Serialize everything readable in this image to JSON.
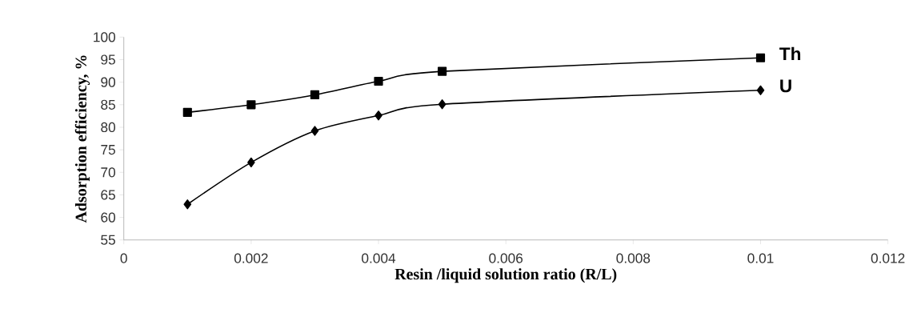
{
  "chart_data": {
    "type": "line",
    "xlabel": "Resin /liquid  solution ratio (R/L)",
    "ylabel": "Adsorption efficiency, %",
    "x": [
      0.001,
      0.002,
      0.003,
      0.004,
      0.005,
      0.01
    ],
    "series": [
      {
        "name": "Th",
        "color": "#000000",
        "marker": "square",
        "values": [
          83.3,
          85.0,
          87.2,
          90.2,
          92.4,
          95.4
        ]
      },
      {
        "name": "U",
        "color": "#000000",
        "marker": "diamond",
        "values": [
          62.9,
          72.2,
          79.2,
          82.6,
          85.1,
          88.2
        ]
      }
    ],
    "xlim": [
      0,
      0.012
    ],
    "xticks": [
      0,
      0.002,
      0.004,
      0.006,
      0.008,
      0.01,
      0.012
    ],
    "ylim": [
      55,
      100
    ],
    "yticks": [
      55,
      60,
      65,
      70,
      75,
      80,
      85,
      90,
      95,
      100
    ],
    "grid": false,
    "line_style": "solid"
  }
}
